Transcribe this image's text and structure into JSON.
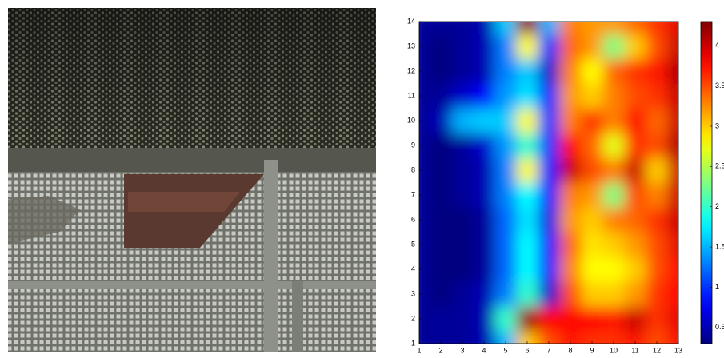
{
  "chart_data": {
    "type": "heatmap",
    "colormap": "jet",
    "x": [
      1,
      2,
      3,
      4,
      5,
      6,
      7,
      8,
      9,
      10,
      11,
      12,
      13
    ],
    "y": [
      1,
      2,
      3,
      4,
      5,
      6,
      7,
      8,
      9,
      10,
      11,
      12,
      13,
      14
    ],
    "z": [
      [
        0.4,
        0.4,
        0.4,
        0.5,
        1.5,
        3.0,
        3.5,
        3.7,
        3.6,
        3.6,
        3.7,
        3.5,
        3.8
      ],
      [
        0.4,
        0.4,
        0.4,
        0.5,
        2.0,
        4.2,
        3.8,
        3.8,
        3.8,
        3.7,
        4.0,
        3.6,
        3.9
      ],
      [
        0.4,
        0.3,
        0.4,
        0.5,
        1.3,
        2.0,
        0.6,
        3.5,
        3.0,
        3.0,
        3.2,
        3.6,
        3.8
      ],
      [
        0.4,
        0.3,
        0.3,
        0.4,
        1.2,
        1.8,
        0.8,
        3.3,
        2.8,
        2.8,
        3.0,
        3.5,
        3.8
      ],
      [
        0.4,
        0.3,
        0.3,
        0.4,
        1.2,
        1.8,
        0.8,
        3.4,
        2.9,
        3.0,
        3.2,
        3.5,
        3.9
      ],
      [
        0.4,
        0.3,
        0.3,
        0.4,
        1.2,
        1.7,
        0.7,
        3.2,
        3.0,
        3.3,
        3.4,
        3.6,
        4.0
      ],
      [
        0.4,
        0.3,
        0.4,
        0.5,
        1.3,
        1.8,
        0.8,
        3.3,
        3.2,
        2.3,
        3.5,
        3.3,
        4.0
      ],
      [
        0.4,
        0.3,
        0.4,
        0.5,
        1.3,
        2.8,
        0.9,
        4.0,
        3.5,
        3.3,
        4.0,
        3.0,
        4.0
      ],
      [
        0.4,
        0.3,
        0.4,
        0.6,
        1.4,
        2.0,
        1.0,
        3.8,
        3.4,
        2.7,
        3.6,
        3.5,
        4.1
      ],
      [
        0.4,
        0.5,
        1.5,
        1.6,
        1.6,
        2.8,
        1.0,
        3.3,
        3.6,
        3.3,
        3.8,
        3.4,
        4.0
      ],
      [
        0.4,
        0.4,
        0.6,
        0.8,
        1.4,
        1.7,
        0.9,
        3.2,
        3.0,
        3.3,
        3.5,
        3.6,
        4.0
      ],
      [
        0.4,
        0.3,
        0.4,
        0.5,
        1.3,
        1.6,
        0.6,
        3.3,
        2.8,
        3.4,
        3.6,
        3.7,
        4.1
      ],
      [
        0.4,
        0.3,
        0.4,
        0.5,
        1.3,
        2.8,
        1.0,
        3.4,
        3.2,
        2.3,
        3.0,
        3.5,
        4.0
      ],
      [
        0.4,
        0.4,
        0.4,
        0.5,
        1.6,
        4.2,
        1.5,
        3.3,
        3.2,
        3.2,
        3.4,
        3.6,
        3.9
      ]
    ],
    "xlim": [
      1,
      13
    ],
    "ylim": [
      1,
      14
    ],
    "xticks": [
      1,
      2,
      3,
      4,
      5,
      6,
      7,
      8,
      9,
      10,
      11,
      12,
      13
    ],
    "yticks": [
      1,
      2,
      3,
      4,
      5,
      6,
      7,
      8,
      9,
      10,
      11,
      12,
      13,
      14
    ],
    "colorbar": {
      "lim": [
        0.3,
        4.3
      ],
      "ticks": [
        0.5,
        1,
        1.5,
        2,
        2.5,
        3,
        3.5,
        4
      ]
    }
  }
}
